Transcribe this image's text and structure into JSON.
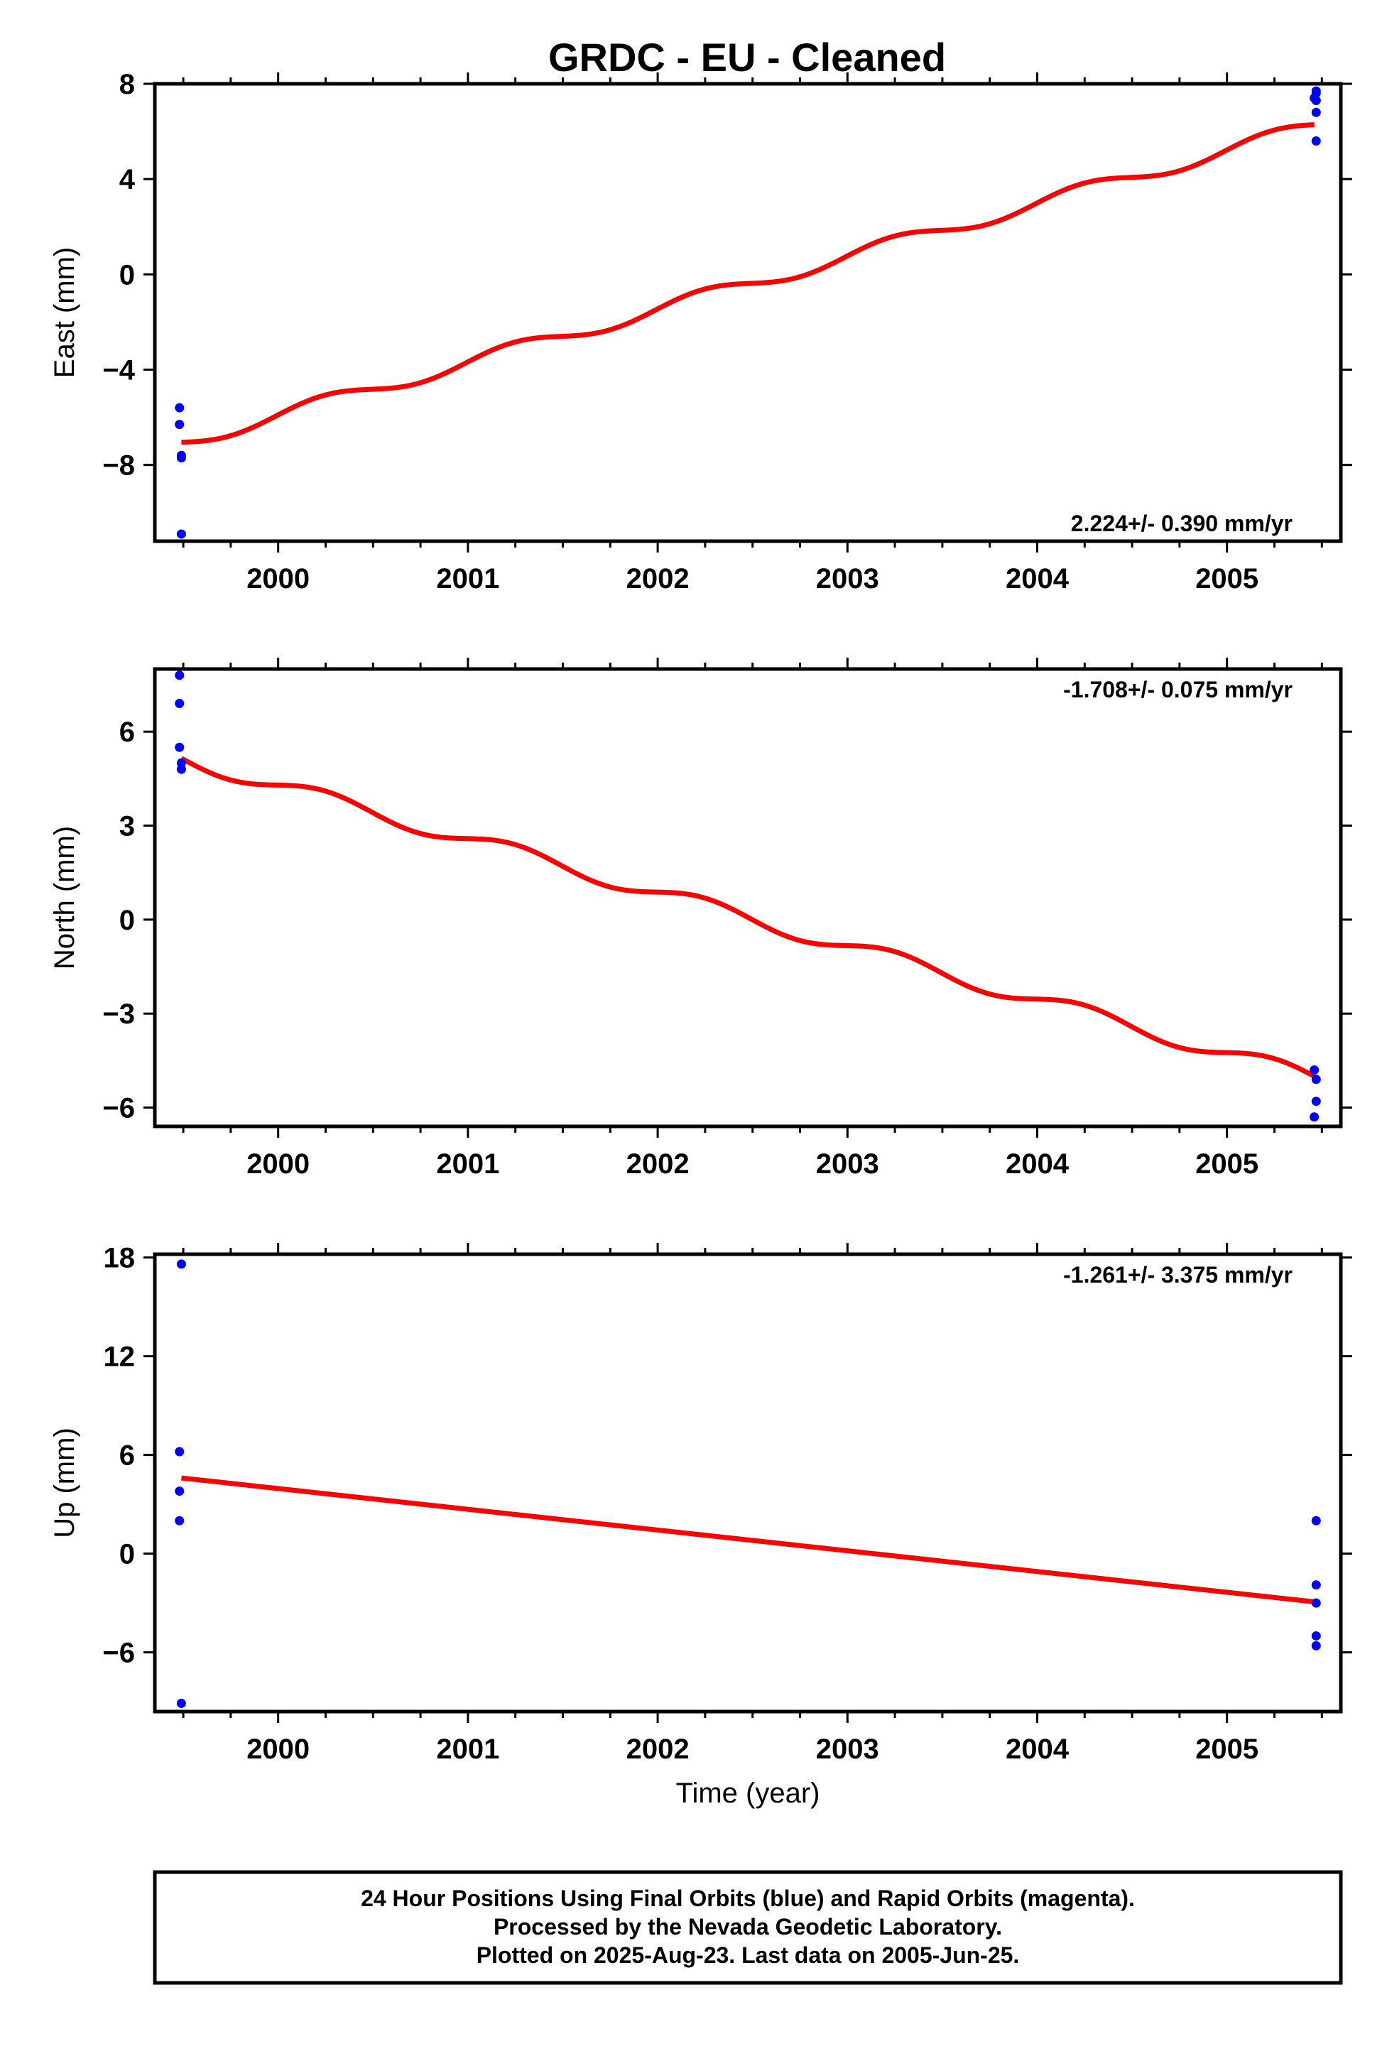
{
  "title": "GRDC  - EU - Cleaned",
  "colors": {
    "final_orbits": "#0000ff",
    "model": "#ff0000",
    "frame": "#000000"
  },
  "chart_data": [
    {
      "type": "scatter",
      "panel": "east",
      "ylabel": "East (mm)",
      "xlabel": "",
      "xlim": [
        1999.35,
        2005.6
      ],
      "ylim": [
        -11.2,
        8
      ],
      "yticks": [
        8,
        4,
        0,
        -4,
        -8
      ],
      "ytick_labels": [
        "8",
        "4",
        "0",
        "−4",
        "−8"
      ],
      "xticks": [
        2000,
        2001,
        2002,
        2003,
        2004,
        2005
      ],
      "xtick_labels": [
        "2000",
        "2001",
        "2002",
        "2003",
        "2004",
        "2005"
      ],
      "rate_label": "2.224+/- 0.390 mm/yr",
      "rate_position": "bottom-right",
      "points": [
        [
          1999.48,
          -5.6
        ],
        [
          1999.48,
          -6.3
        ],
        [
          1999.49,
          -7.6
        ],
        [
          1999.49,
          -7.7
        ],
        [
          1999.49,
          -10.9
        ],
        [
          2005.46,
          7.4
        ],
        [
          2005.47,
          7.6
        ],
        [
          2005.47,
          7.7
        ],
        [
          2005.47,
          7.3
        ],
        [
          2005.47,
          6.8
        ],
        [
          2005.47,
          5.6
        ]
      ],
      "model": {
        "x0": 1999.49,
        "y0": -7.05,
        "rate": 2.224,
        "amplitude": 0.3,
        "phase_year": 1999.49,
        "x1": 2005.46
      }
    },
    {
      "type": "scatter",
      "panel": "north",
      "ylabel": "North (mm)",
      "xlabel": "",
      "xlim": [
        1999.35,
        2005.6
      ],
      "ylim": [
        -6.6,
        8
      ],
      "yticks": [
        6,
        3,
        0,
        -3,
        -6
      ],
      "ytick_labels": [
        "6",
        "3",
        "0",
        "−3",
        "−6"
      ],
      "xticks": [
        2000,
        2001,
        2002,
        2003,
        2004,
        2005
      ],
      "xtick_labels": [
        "2000",
        "2001",
        "2002",
        "2003",
        "2004",
        "2005"
      ],
      "rate_label": "-1.708+/- 0.075 mm/yr",
      "rate_position": "top-right",
      "points": [
        [
          1999.48,
          7.8
        ],
        [
          1999.48,
          6.9
        ],
        [
          1999.48,
          5.5
        ],
        [
          1999.49,
          5.0
        ],
        [
          1999.49,
          4.8
        ],
        [
          2005.46,
          -4.8
        ],
        [
          2005.47,
          -5.1
        ],
        [
          2005.47,
          -5.8
        ],
        [
          2005.46,
          -6.3
        ]
      ],
      "model": {
        "x0": 1999.49,
        "y0": 5.15,
        "rate": -1.708,
        "amplitude": 0.25,
        "phase_year": 1999.49,
        "x1": 2005.46
      }
    },
    {
      "type": "scatter",
      "panel": "up",
      "ylabel": "Up (mm)",
      "xlabel": "Time (year)",
      "xlim": [
        1999.35,
        2005.6
      ],
      "ylim": [
        -9.6,
        18.2
      ],
      "yticks": [
        18,
        12,
        6,
        0,
        -6
      ],
      "ytick_labels": [
        "18",
        "12",
        "6",
        "0",
        "−6"
      ],
      "xticks": [
        2000,
        2001,
        2002,
        2003,
        2004,
        2005
      ],
      "xtick_labels": [
        "2000",
        "2001",
        "2002",
        "2003",
        "2004",
        "2005"
      ],
      "rate_label": "-1.261+/- 3.375 mm/yr",
      "rate_position": "top-right",
      "points": [
        [
          1999.49,
          17.6
        ],
        [
          1999.48,
          6.2
        ],
        [
          1999.48,
          3.8
        ],
        [
          1999.48,
          2.0
        ],
        [
          1999.49,
          -9.1
        ],
        [
          2005.47,
          2.0
        ],
        [
          2005.47,
          -1.9
        ],
        [
          2005.47,
          -3.0
        ],
        [
          2005.47,
          -5.0
        ],
        [
          2005.47,
          -5.6
        ]
      ],
      "model": {
        "x0": 1999.49,
        "y0": 4.6,
        "rate": -1.261,
        "amplitude": 0,
        "phase_year": 1999.49,
        "x1": 2005.46
      }
    }
  ],
  "footer": {
    "line1": "24 Hour Positions Using Final Orbits (blue) and Rapid Orbits (magenta).",
    "line2": "Processed by the Nevada Geodetic Laboratory.",
    "line3": "Plotted on 2025-Aug-23. Last data on 2005-Jun-25."
  }
}
